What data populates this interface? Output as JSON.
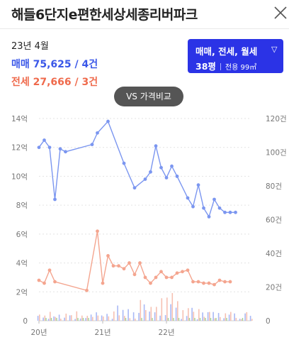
{
  "header": {
    "title": "해들6단지e편한세상세종리버파크",
    "close_icon": "close-icon"
  },
  "summary": {
    "date": "23년 4월",
    "sale": "매매 75,625 / 4건",
    "jeonse": "전세 27,666 / 3건"
  },
  "filter": {
    "types": "매매, 전세, 월세",
    "dropdown_icon": "chevron-down-icon",
    "pyeong": "38평",
    "area": "전용 99㎡"
  },
  "compare_button": "VS 가격비교",
  "colors": {
    "sale": "#3a57e8",
    "jeonse": "#ef6a4c",
    "filter_bg": "#2b33e6"
  },
  "chart_data": {
    "type": "line",
    "x_ticks": [
      "20년",
      "21년",
      "22년"
    ],
    "y_left_ticks": [
      "0",
      "2억",
      "4억",
      "6억",
      "8억",
      "10억",
      "12억",
      "14억"
    ],
    "y_right_ticks": [
      "0",
      "20건",
      "40건",
      "60건",
      "80건",
      "100건",
      "120건"
    ],
    "y_left_range": [
      0,
      14
    ],
    "y_right_range": [
      0,
      120
    ],
    "x_range": [
      "2020-01",
      "2023-05"
    ],
    "grid": "dotted horizontal",
    "series": [
      {
        "color": "#7b96f0",
        "x": [
          "2020-01",
          "2020-02",
          "2020-03",
          "2020-04",
          "2020-05",
          "2020-06",
          "2020-11",
          "2020-12",
          "2021-02",
          "2021-05",
          "2021-07",
          "2021-09",
          "2021-10",
          "2021-11",
          "2021-12",
          "2022-01",
          "2022-02",
          "2022-03",
          "2022-05",
          "2022-06",
          "2022-07",
          "2022-08",
          "2022-09",
          "2022-10",
          "2022-11",
          "2022-12",
          "2023-01",
          "2023-02"
        ],
        "values": [
          12.0,
          12.5,
          12.0,
          8.4,
          11.9,
          11.7,
          12.2,
          13.0,
          13.8,
          10.9,
          9.2,
          9.8,
          10.3,
          12.1,
          10.6,
          9.9,
          10.7,
          10.0,
          8.5,
          7.9,
          9.4,
          7.8,
          7.2,
          8.4,
          7.8,
          7.5,
          7.5,
          7.5
        ]
      },
      {
        "color": "#f4a58f",
        "x": [
          "2020-01",
          "2020-02",
          "2020-03",
          "2020-04",
          "2020-10",
          "2020-12",
          "2021-01",
          "2021-02",
          "2021-03",
          "2021-04",
          "2021-05",
          "2021-06",
          "2021-07",
          "2021-08",
          "2021-09",
          "2021-10",
          "2021-11",
          "2021-12",
          "2022-01",
          "2022-02",
          "2022-03",
          "2022-04",
          "2022-05",
          "2022-06",
          "2022-07",
          "2022-08",
          "2022-09",
          "2022-10",
          "2022-11",
          "2022-12",
          "2023-01"
        ],
        "values": [
          2.8,
          2.6,
          3.5,
          2.7,
          2.1,
          6.2,
          2.6,
          4.5,
          3.8,
          3.8,
          3.6,
          4.0,
          3.2,
          4.0,
          3.0,
          2.6,
          3.0,
          3.4,
          3.0,
          3.0,
          3.3,
          3.4,
          3.5,
          2.7,
          2.7,
          2.6,
          2.6,
          2.5,
          2.8,
          2.7,
          2.7
        ]
      }
    ]
  }
}
